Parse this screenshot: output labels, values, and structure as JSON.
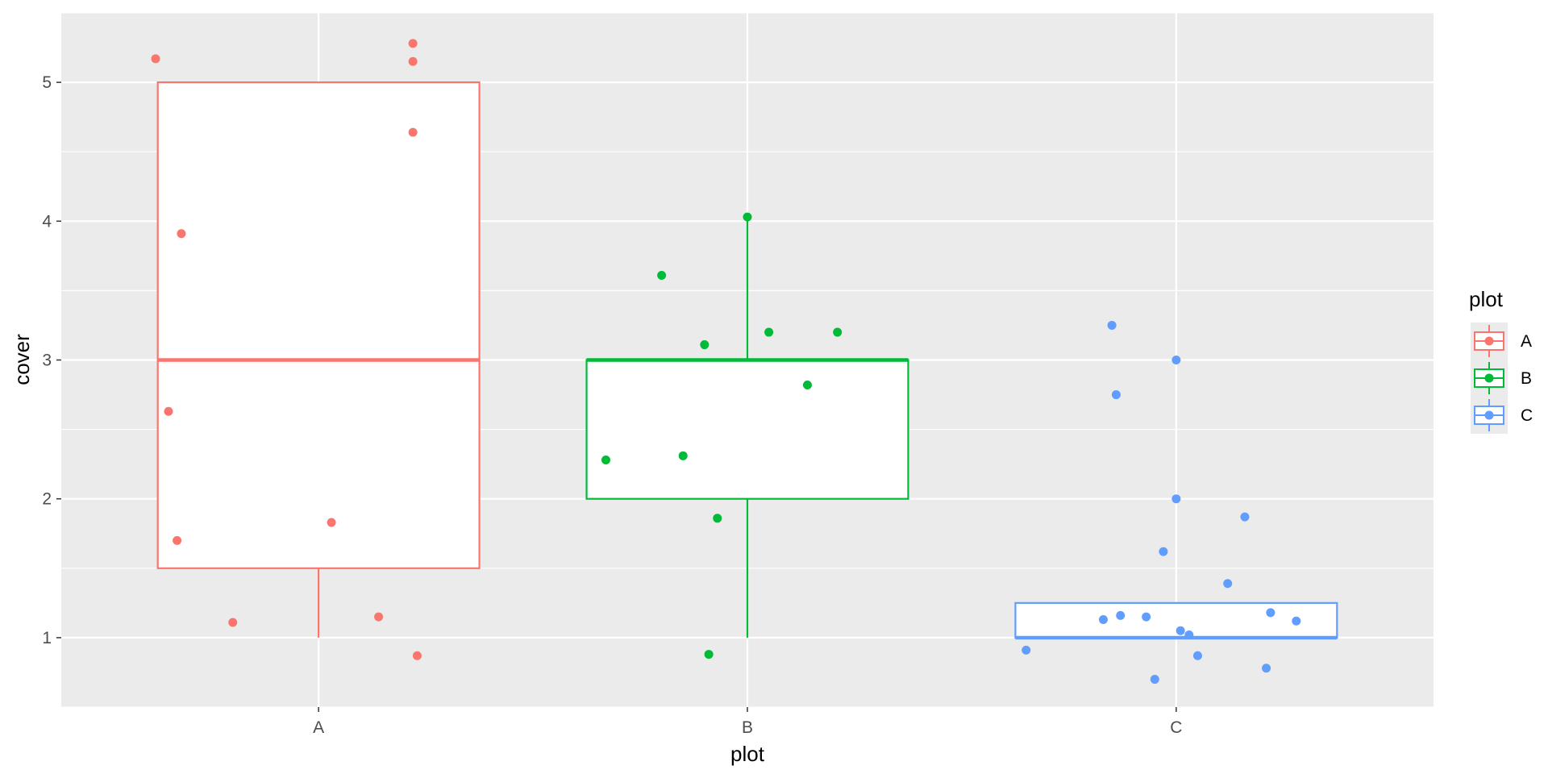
{
  "chart_data": {
    "type": "box",
    "xlabel": "plot",
    "ylabel": "cover",
    "categories": [
      "A",
      "B",
      "C"
    ],
    "ylim": [
      0.5,
      5.5
    ],
    "y_ticks": [
      1,
      2,
      3,
      4,
      5
    ],
    "y_tick_labels": [
      "1",
      "2",
      "3",
      "4",
      "5"
    ],
    "grid": true,
    "legend": {
      "title": "plot",
      "position": "right",
      "items": [
        "A",
        "B",
        "C"
      ]
    },
    "colors": {
      "A": "#F8766D",
      "B": "#00BA38",
      "C": "#619CFF"
    },
    "panel_background": "#EBEBEB",
    "boxes": [
      {
        "category": "A",
        "whisker_low": 1,
        "q1": 1.5,
        "median": 3,
        "q3": 5,
        "whisker_high": 5
      },
      {
        "category": "B",
        "whisker_low": 1,
        "q1": 2,
        "median": 3,
        "q3": 3,
        "whisker_high": 4
      },
      {
        "category": "C",
        "whisker_low": 1,
        "q1": 1,
        "median": 1,
        "q3": 1.25,
        "whisker_high": 1.25
      }
    ],
    "points": {
      "A": [
        {
          "x": 0.62,
          "y": 5.17
        },
        {
          "x": 1.22,
          "y": 5.15
        },
        {
          "x": 1.22,
          "y": 4.64
        },
        {
          "x": 1.22,
          "y": 5.28
        },
        {
          "x": 0.68,
          "y": 3.91
        },
        {
          "x": 0.65,
          "y": 2.63
        },
        {
          "x": 0.67,
          "y": 1.7
        },
        {
          "x": 1.03,
          "y": 1.83
        },
        {
          "x": 0.8,
          "y": 1.11
        },
        {
          "x": 1.14,
          "y": 1.15
        },
        {
          "x": 1.23,
          "y": 0.87
        }
      ],
      "B": [
        {
          "x": 1.8,
          "y": 3.61
        },
        {
          "x": 2.0,
          "y": 4.03
        },
        {
          "x": 1.9,
          "y": 3.11
        },
        {
          "x": 2.05,
          "y": 3.2
        },
        {
          "x": 2.21,
          "y": 3.2
        },
        {
          "x": 2.14,
          "y": 2.82
        },
        {
          "x": 1.67,
          "y": 2.28
        },
        {
          "x": 1.85,
          "y": 2.31
        },
        {
          "x": 1.93,
          "y": 1.86
        },
        {
          "x": 1.91,
          "y": 0.88
        }
      ],
      "C": [
        {
          "x": 2.85,
          "y": 3.25
        },
        {
          "x": 3.0,
          "y": 3.0
        },
        {
          "x": 2.86,
          "y": 2.75
        },
        {
          "x": 3.0,
          "y": 2.0
        },
        {
          "x": 3.16,
          "y": 1.87
        },
        {
          "x": 2.97,
          "y": 1.62
        },
        {
          "x": 3.12,
          "y": 1.39
        },
        {
          "x": 2.83,
          "y": 1.13
        },
        {
          "x": 2.87,
          "y": 1.16
        },
        {
          "x": 2.93,
          "y": 1.15
        },
        {
          "x": 3.22,
          "y": 1.18
        },
        {
          "x": 3.28,
          "y": 1.12
        },
        {
          "x": 3.01,
          "y": 1.05
        },
        {
          "x": 3.03,
          "y": 1.02
        },
        {
          "x": 2.65,
          "y": 0.91
        },
        {
          "x": 3.05,
          "y": 0.87
        },
        {
          "x": 3.21,
          "y": 0.78
        },
        {
          "x": 2.95,
          "y": 0.7
        }
      ]
    }
  }
}
